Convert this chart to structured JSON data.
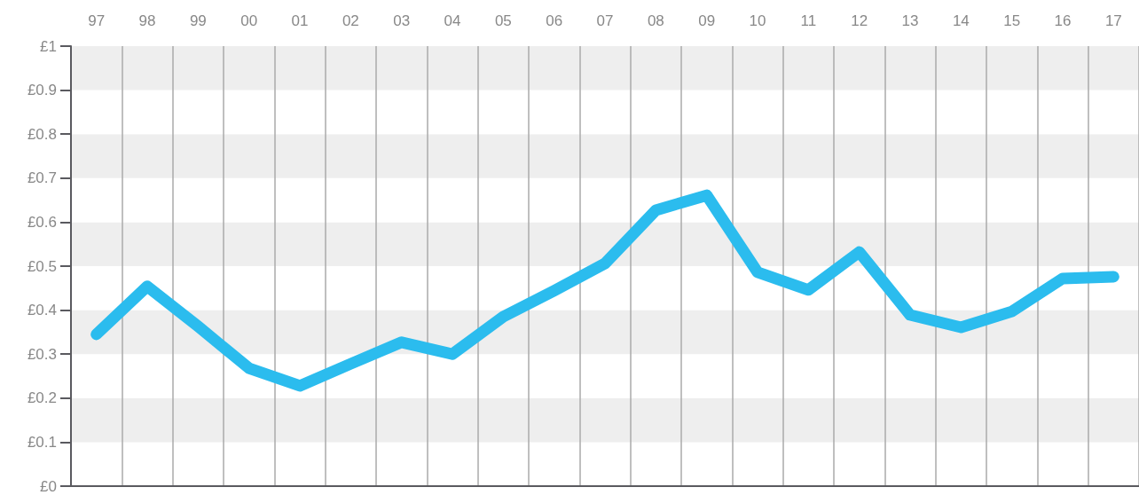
{
  "chart_data": {
    "type": "line",
    "categories": [
      "97",
      "98",
      "99",
      "00",
      "01",
      "02",
      "03",
      "04",
      "05",
      "06",
      "07",
      "08",
      "09",
      "10",
      "11",
      "12",
      "13",
      "14",
      "15",
      "16",
      "17"
    ],
    "series": [
      {
        "color": "#2bbcee",
        "values": [
          0.345,
          0.454,
          0.363,
          0.268,
          0.228,
          0.278,
          0.327,
          0.3,
          0.385,
          0.444,
          0.506,
          0.627,
          0.661,
          0.486,
          0.446,
          0.532,
          0.389,
          0.361,
          0.397,
          0.472,
          0.476
        ]
      }
    ],
    "ylim": [
      0,
      1
    ],
    "yticks": [
      {
        "value": 0,
        "label": "£0"
      },
      {
        "value": 0.1,
        "label": "£0.1"
      },
      {
        "value": 0.2,
        "label": "£0.2"
      },
      {
        "value": 0.3,
        "label": "£0.3"
      },
      {
        "value": 0.4,
        "label": "£0.4"
      },
      {
        "value": 0.5,
        "label": "£0.5"
      },
      {
        "value": 0.6,
        "label": "£0.6"
      },
      {
        "value": 0.7,
        "label": "£0.7"
      },
      {
        "value": 0.8,
        "label": "£0.8"
      },
      {
        "value": 0.9,
        "label": "£0.9"
      },
      {
        "value": 1,
        "label": "£1"
      }
    ],
    "grid": true,
    "line_style": "solid"
  }
}
